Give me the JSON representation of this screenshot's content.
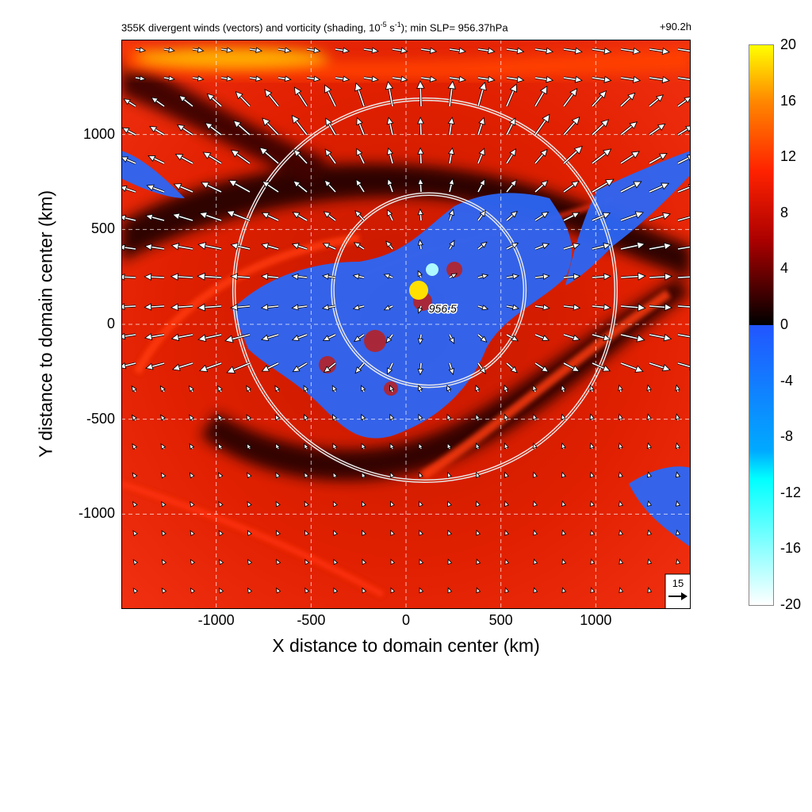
{
  "header": {
    "title_prefix": "355K divergent winds (vectors) and vorticity (shading, 10",
    "title_exp1": "-5",
    "title_mid": " s",
    "title_exp2": "-1",
    "title_suffix": "); min SLP= 956.37hPa",
    "forecast_time": "+90.2h"
  },
  "chart_data": {
    "type": "heatmap",
    "xlabel": "X distance to domain center (km)",
    "ylabel": "Y distance to domain center (km)",
    "xlim": [
      -1500,
      1500
    ],
    "ylim": [
      -1500,
      1500
    ],
    "xticks": [
      -1000,
      -500,
      0,
      500,
      1000
    ],
    "yticks": [
      -1000,
      -500,
      0,
      500,
      1000
    ],
    "grid": true,
    "center_marker": {
      "label": "956.5",
      "x": 70,
      "y": 180
    },
    "rings": [
      {
        "center_x": 120,
        "center_y": 180,
        "radius_km": 500
      },
      {
        "center_x": 100,
        "center_y": 180,
        "radius_km": 1000
      }
    ],
    "vector_reference": {
      "label": "15"
    },
    "colorbar": {
      "ticks": [
        20,
        16,
        12,
        8,
        4,
        0,
        -4,
        -8,
        -12,
        -16,
        -20
      ],
      "min": -20,
      "max": 20,
      "colors": [
        "#ffffff",
        "#00ffff",
        "#2255ff",
        "#000000",
        "#cc0000",
        "#ff2200",
        "#ff9900",
        "#ffff00"
      ]
    }
  }
}
